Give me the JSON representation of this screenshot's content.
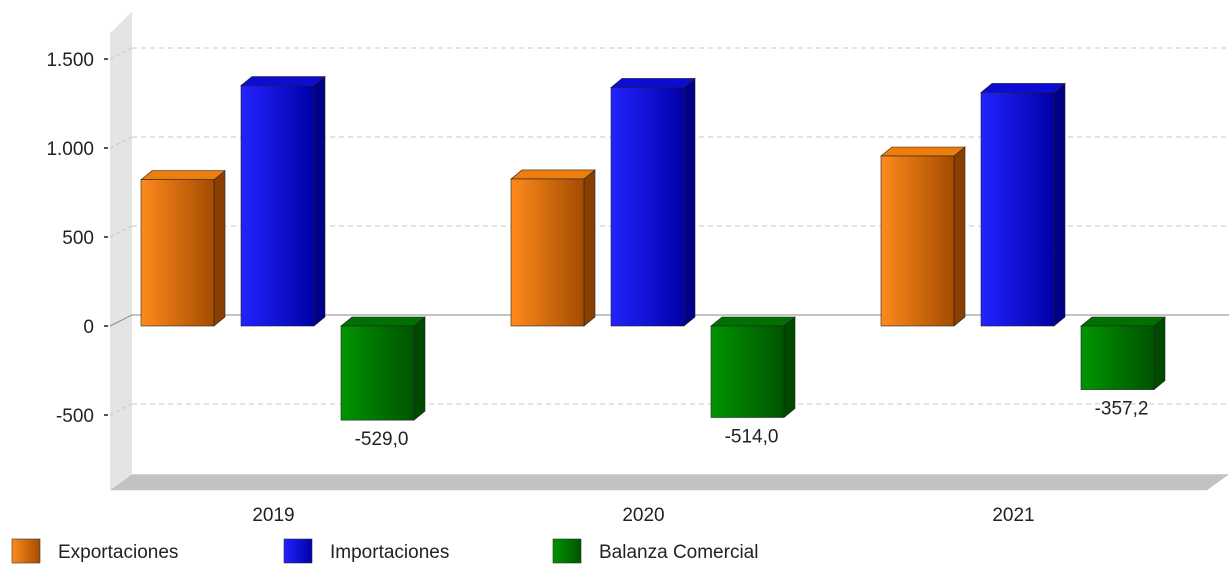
{
  "chart_data": {
    "type": "bar",
    "title": "",
    "xlabel": "",
    "ylabel": "",
    "categories": [
      "2019",
      "2020",
      "2021"
    ],
    "series": [
      {
        "name": "Exportaciones",
        "values": [
          822,
          826,
          955
        ],
        "color": "#e97100"
      },
      {
        "name": "Importaciones",
        "values": [
          1351,
          1340,
          1312
        ],
        "color": "#0000d8"
      },
      {
        "name": "Balanza Comercial",
        "values": [
          -529.0,
          -514.0,
          -357.2
        ],
        "color": "#007800"
      }
    ],
    "data_labels": {
      "Balanza Comercial": [
        "-529,0",
        "-514,0",
        "-357,2"
      ]
    },
    "ylim": [
      -900,
      1700
    ],
    "yticks": [
      -500,
      0,
      500,
      1000,
      1500
    ],
    "ytick_labels": [
      "-500",
      "0",
      "500",
      "1.000",
      "1.500"
    ],
    "grid": true,
    "legend_position": "bottom-left",
    "style": "3d"
  }
}
